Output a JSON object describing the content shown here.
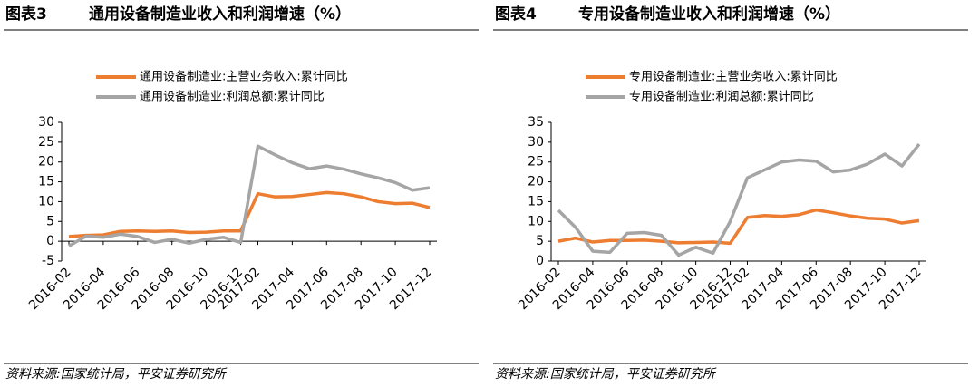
{
  "chart_data": [
    {
      "type": "line",
      "label": "图表3",
      "title": "通用设备制造业收入和利润增速（%）",
      "source": "资料来源:国家统计局，平安证券研究所",
      "categories": [
        "2016-02",
        null,
        "2016-04",
        null,
        "2016-06",
        null,
        "2016-08",
        null,
        "2016-10",
        null,
        "2016-12",
        "2017-02",
        null,
        "2017-04",
        null,
        "2017-06",
        null,
        "2017-08",
        null,
        "2017-10",
        null,
        "2017-12"
      ],
      "series": [
        {
          "name": "通用设备制造业:主营业务收入:累计同比",
          "color": "#ed7d31",
          "values": [
            1.2,
            1.5,
            1.6,
            2.5,
            2.6,
            2.5,
            2.6,
            2.2,
            2.3,
            2.6,
            2.6,
            12,
            11.2,
            11.3,
            11.8,
            12.3,
            12.0,
            11.2,
            10,
            9.5,
            9.6,
            8.5
          ]
        },
        {
          "name": "通用设备制造业:利润总额:累计同比",
          "color": "#a5a5a5",
          "values": [
            -1.2,
            1.3,
            1.0,
            1.8,
            1.2,
            -0.3,
            0.5,
            -0.5,
            0.5,
            1.0,
            -0.3,
            24,
            21.8,
            19.8,
            18.3,
            19,
            18.2,
            17,
            16,
            14.8,
            12.9,
            13.5
          ]
        }
      ],
      "ylim": [
        -5,
        30
      ],
      "yticks": [
        -5,
        0,
        5,
        10,
        15,
        20,
        25,
        30
      ]
    },
    {
      "type": "line",
      "label": "图表4",
      "title": "专用设备制造业收入和利润增速（%）",
      "source": "资料来源:国家统计局，平安证券研究所",
      "categories": [
        "2016-02",
        null,
        "2016-04",
        null,
        "2016-06",
        null,
        "2016-08",
        null,
        "2016-10",
        null,
        "2016-12",
        "2017-02",
        null,
        "2017-04",
        null,
        "2017-06",
        null,
        "2017-08",
        null,
        "2017-10",
        null,
        "2017-12"
      ],
      "series": [
        {
          "name": "专用设备制造业:主营业务收入:累计同比",
          "color": "#ed7d31",
          "values": [
            5,
            5.8,
            4.8,
            5.2,
            5.2,
            5.3,
            5.0,
            4.6,
            4.7,
            4.8,
            4.5,
            11,
            11.5,
            11.3,
            11.7,
            12.9,
            12.2,
            11.4,
            10.8,
            10.6,
            9.6,
            10.2
          ]
        },
        {
          "name": "专用设备制造业:利润总额:累计同比",
          "color": "#a5a5a5",
          "values": [
            12.8,
            8.5,
            2.5,
            2.2,
            7,
            7.2,
            6.5,
            1.5,
            3.5,
            2,
            10,
            21,
            23,
            25,
            25.5,
            25.2,
            22.5,
            23,
            24.5,
            27,
            24,
            29.5
          ]
        }
      ],
      "ylim": [
        0,
        35
      ],
      "yticks": [
        0,
        5,
        10,
        15,
        20,
        25,
        30,
        35
      ]
    }
  ]
}
